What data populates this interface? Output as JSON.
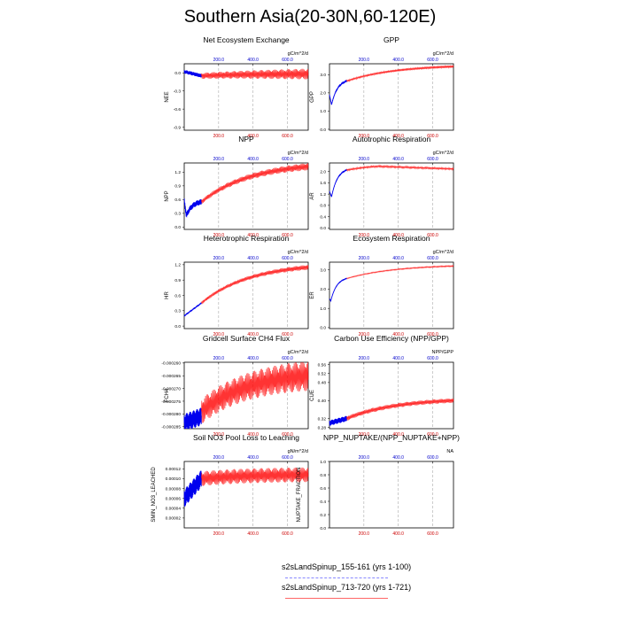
{
  "page": {
    "title": "Southern Asia(20-30N,60-120E)"
  },
  "colors": {
    "model1": "#0000ee",
    "model2": "#ff0000",
    "model1_ticks": "#0000cc",
    "model2_ticks": "#cc0000"
  },
  "legend": {
    "entries": [
      {
        "label": "s2sLandSpinup_155-161 (yrs 1-100)",
        "color": "#8888ff",
        "style": "dashed"
      },
      {
        "label": "s2sLandSpinup_713-720 (yrs 1-721)",
        "color": "#ff6666",
        "style": "solid"
      }
    ]
  },
  "chart_data": [
    {
      "type": "line",
      "title": "Net Ecosystem Exchange",
      "ylabel": "NEE",
      "units": "gC/m^2/d",
      "ylim": [
        -0.95,
        0.15
      ],
      "yticks": [
        -0.9,
        -0.6,
        -0.3,
        0.0
      ],
      "ytick_labels": [
        "-0.9",
        "-0.6",
        "-0.3",
        "0.0"
      ],
      "x_top_ticks": [
        "200.0",
        "400.0",
        "600.0"
      ],
      "x_bottom_ticks": [
        "200.0",
        "400.0",
        "600.0"
      ],
      "xlim": [
        0,
        721
      ],
      "series": [
        {
          "name": "s2sLandSpinup_155-161 (yrs 1-100)",
          "x_end": 100,
          "start": 0.02,
          "end": -0.05,
          "dip_x": 0,
          "dip_y": 0,
          "osc": 0.03
        },
        {
          "name": "s2sLandSpinup_713-720 (yrs 1-721)",
          "x_end": 721,
          "start": -0.05,
          "end": -0.02,
          "dip_x": 0,
          "dip_y": 0,
          "osc": 0.05,
          "grow": 0.04
        }
      ]
    },
    {
      "type": "line",
      "title": "GPP",
      "ylabel": "GPP",
      "units": "gC/m^2/d",
      "ylim": [
        -0.05,
        3.6
      ],
      "yticks": [
        0.0,
        1.0,
        2.0,
        3.0
      ],
      "ytick_labels": [
        "0.0",
        "1.0",
        "2.0",
        "3.0"
      ],
      "x_top_ticks": [
        "200.0",
        "400.0",
        "600.0"
      ],
      "x_bottom_ticks": [],
      "xlim": [
        0,
        721
      ],
      "series": [
        {
          "name": "s2sLandSpinup_155-161 (yrs 1-100)",
          "x_end": 100,
          "start": 1.9,
          "end": 2.65,
          "dip_x": 12,
          "dip_y": 1.35,
          "osc": 0.02
        },
        {
          "name": "s2sLandSpinup_713-720 (yrs 1-721)",
          "x_end": 721,
          "start": 2.65,
          "end": 3.45,
          "dip_x": 0,
          "dip_y": 0,
          "osc": 0.05,
          "grow": 0.02
        }
      ]
    },
    {
      "type": "line",
      "title": "NPP",
      "ylabel": "NPP",
      "units": "gC/m^2/d",
      "ylim": [
        -0.05,
        1.4
      ],
      "yticks": [
        0.0,
        0.3,
        0.6,
        0.9,
        1.2
      ],
      "ytick_labels": [
        "0.0",
        "0.3",
        "0.6",
        "0.9",
        "1.2"
      ],
      "x_top_ticks": [
        "200.0",
        "400.0",
        "600.0"
      ],
      "x_bottom_ticks": [],
      "xlim": [
        0,
        721
      ],
      "series": [
        {
          "name": "s2sLandSpinup_155-161 (yrs 1-100)",
          "x_end": 100,
          "start": 0.6,
          "end": 0.55,
          "dip_x": 12,
          "dip_y": 0.25,
          "osc": 0.06
        },
        {
          "name": "s2sLandSpinup_713-720 (yrs 1-721)",
          "x_end": 721,
          "start": 0.55,
          "end": 1.32,
          "dip_x": 0,
          "dip_y": 0,
          "osc": 0.05,
          "grow": 0.03
        }
      ]
    },
    {
      "type": "line",
      "title": "Autotrophic Respiration",
      "ylabel": "AR",
      "units": "gC/m^2/d",
      "ylim": [
        -0.05,
        2.3
      ],
      "yticks": [
        0.0,
        0.4,
        0.8,
        1.2,
        1.6,
        2.0
      ],
      "ytick_labels": [
        "0.0",
        "0.4",
        "0.8",
        "1.2",
        "1.6",
        "2.0"
      ],
      "x_top_ticks": [
        "200.0",
        "400.0",
        "600.0"
      ],
      "x_bottom_ticks": [],
      "xlim": [
        0,
        721
      ],
      "series": [
        {
          "name": "s2sLandSpinup_155-161 (yrs 1-100)",
          "x_end": 100,
          "start": 1.3,
          "end": 2.05,
          "dip_x": 12,
          "dip_y": 1.1,
          "osc": 0.01
        },
        {
          "name": "s2sLandSpinup_713-720 (yrs 1-721)",
          "x_end": 721,
          "start": 2.05,
          "end": 2.05,
          "dip_x": 0,
          "dip_y": 0,
          "osc": 0.03,
          "grow": 0.0,
          "bump": 2.18
        }
      ]
    },
    {
      "type": "line",
      "title": "Heterotrophic Respiration",
      "ylabel": "HR",
      "units": "gC/m^2/d",
      "ylim": [
        -0.05,
        1.25
      ],
      "yticks": [
        0.0,
        0.3,
        0.6,
        0.9,
        1.2
      ],
      "ytick_labels": [
        "0.0",
        "0.3",
        "0.6",
        "0.9",
        "1.2"
      ],
      "x_top_ticks": [
        "200.0",
        "400.0",
        "600.0"
      ],
      "x_bottom_ticks": [],
      "xlim": [
        0,
        721
      ],
      "series": [
        {
          "name": "s2sLandSpinup_155-161 (yrs 1-100)",
          "x_end": 100,
          "start": 0.2,
          "end": 0.45,
          "dip_x": 0,
          "dip_y": 0,
          "osc": 0.005
        },
        {
          "name": "s2sLandSpinup_713-720 (yrs 1-721)",
          "x_end": 721,
          "start": 0.45,
          "end": 1.15,
          "dip_x": 0,
          "dip_y": 0,
          "osc": 0.03,
          "grow": 0.02
        }
      ]
    },
    {
      "type": "line",
      "title": "Ecosystem Respiration",
      "ylabel": "ER",
      "units": "gC/m^2/d",
      "ylim": [
        -0.05,
        3.4
      ],
      "yticks": [
        0.0,
        1.0,
        2.0,
        3.0
      ],
      "ytick_labels": [
        "0.0",
        "1.0",
        "2.0",
        "3.0"
      ],
      "x_top_ticks": [
        "200.0",
        "400.0",
        "600.0"
      ],
      "x_bottom_ticks": [],
      "xlim": [
        0,
        721
      ],
      "series": [
        {
          "name": "s2sLandSpinup_155-161 (yrs 1-100)",
          "x_end": 100,
          "start": 1.5,
          "end": 2.55,
          "dip_x": 8,
          "dip_y": 1.4,
          "osc": 0.01
        },
        {
          "name": "s2sLandSpinup_713-720 (yrs 1-721)",
          "x_end": 721,
          "start": 2.55,
          "end": 3.2,
          "dip_x": 0,
          "dip_y": 0,
          "osc": 0.02,
          "grow": 0.01
        }
      ]
    },
    {
      "type": "line",
      "title": "Gridcell Surface CH4 Flux",
      "ylabel": "FCH4",
      "units": "gC/m^2/d",
      "ylim": [
        -0.0002858,
        -0.0002597
      ],
      "yticks": [
        -0.000285,
        -0.00028,
        -0.000275,
        -0.00027,
        -0.000265,
        -0.00026
      ],
      "ytick_labels": [
        "-0.000285",
        "-0.000280",
        "-0.000275",
        "-0.000270",
        "-0.000265",
        "-0.000260"
      ],
      "x_top_ticks": [
        "200.0",
        "400.0",
        "600.0"
      ],
      "x_bottom_ticks": [],
      "xlim": [
        0,
        721
      ],
      "series": [
        {
          "name": "s2sLandSpinup_155-161 (yrs 1-100)",
          "x_end": 100,
          "start": -0.0002835,
          "end": -0.000281,
          "dip_x": 0,
          "dip_y": 0,
          "osc": 3.5e-06
        },
        {
          "name": "s2sLandSpinup_713-720 (yrs 1-721)",
          "x_end": 721,
          "start": -0.000279,
          "end": -0.000265,
          "dip_x": 0,
          "dip_y": 0,
          "osc": 5e-06,
          "grow": 1e-06
        }
      ]
    },
    {
      "type": "line",
      "title": "Carbon Use Efficiency (NPP/GPP)",
      "ylabel": "CUE",
      "units": "NPP/GPP",
      "ylim": [
        0.275,
        0.57
      ],
      "yticks": [
        0.28,
        0.32,
        0.4,
        0.48,
        0.52,
        0.56
      ],
      "ytick_labels": [
        "0.28",
        "0.32",
        "0.40",
        "0.48",
        "0.52",
        "0.56"
      ],
      "x_top_ticks": [
        "200.0",
        "400.0",
        "600.0"
      ],
      "x_bottom_ticks": [],
      "xlim": [
        0,
        721
      ],
      "series": [
        {
          "name": "s2sLandSpinup_155-161 (yrs 1-100)",
          "x_end": 100,
          "start": 0.3,
          "end": 0.32,
          "dip_x": 0,
          "dip_y": 0,
          "osc": 0.012
        },
        {
          "name": "s2sLandSpinup_713-720 (yrs 1-721)",
          "x_end": 721,
          "start": 0.32,
          "end": 0.4,
          "dip_x": 0,
          "dip_y": 0,
          "osc": 0.01,
          "grow": 0.0
        }
      ]
    },
    {
      "type": "line",
      "title": "Soil NO3 Pool Loss to Leaching",
      "ylabel": "SMIN_NO3_LEACHED",
      "units": "gN/m^2/d",
      "ylim": [
        0.0,
        0.000135
      ],
      "yticks": [
        2e-05,
        4e-05,
        6e-05,
        8e-05,
        0.0001,
        0.00012
      ],
      "ytick_labels": [
        "0.00002",
        "0.00004",
        "0.00006",
        "0.00008",
        "0.00010",
        "0.00012"
      ],
      "x_top_ticks": [
        "200.0",
        "400.0",
        "600.0"
      ],
      "x_bottom_ticks": [],
      "xlim": [
        0,
        721
      ],
      "series": [
        {
          "name": "s2sLandSpinup_155-161 (yrs 1-100)",
          "x_end": 100,
          "start": 6e-05,
          "end": 0.0001,
          "dip_x": 0,
          "dip_y": 0,
          "osc": 1.8e-05
        },
        {
          "name": "s2sLandSpinup_713-720 (yrs 1-721)",
          "x_end": 721,
          "start": 0.0001,
          "end": 0.000108,
          "dip_x": 0,
          "dip_y": 0,
          "osc": 1.5e-05,
          "grow": 0.0
        }
      ]
    },
    {
      "type": "line",
      "title": "NPP_NUPTAKE/(NPP_NUPTAKE+NPP)",
      "ylabel": "NUPTAKE_FRACTION",
      "units": "NA",
      "ylim": [
        0.0,
        1.0
      ],
      "yticks": [
        0.0,
        0.2,
        0.4,
        0.6,
        0.8,
        1.0
      ],
      "ytick_labels": [
        "0.0",
        "0.2",
        "0.4",
        "0.6",
        "0.8",
        "1.0"
      ],
      "x_top_ticks": [
        "200.0",
        "400.0",
        "600.0"
      ],
      "x_bottom_ticks": [],
      "xlim": [
        0,
        721
      ],
      "series": []
    }
  ]
}
